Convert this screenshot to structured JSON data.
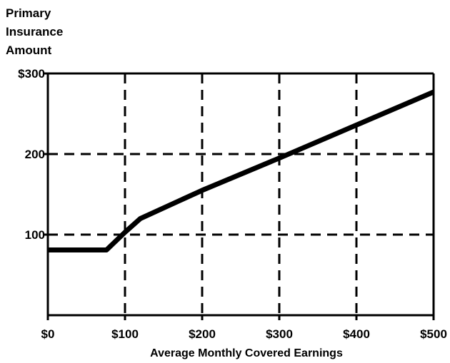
{
  "chart_data": {
    "type": "line",
    "title": "",
    "ylabel": [
      "Primary",
      "Insurance",
      "Amount"
    ],
    "xlabel": "Average Monthly Covered Earnings",
    "xlim": [
      0,
      500
    ],
    "ylim": [
      0,
      300
    ],
    "x_ticks": [
      {
        "value": 0,
        "label": "$0"
      },
      {
        "value": 100,
        "label": "$100"
      },
      {
        "value": 200,
        "label": "$200"
      },
      {
        "value": 300,
        "label": "$300"
      },
      {
        "value": 400,
        "label": "$400"
      },
      {
        "value": 500,
        "label": "$500"
      }
    ],
    "y_ticks": [
      {
        "value": 100,
        "label": "100"
      },
      {
        "value": 200,
        "label": "200"
      },
      {
        "value": 300,
        "label": "$300"
      }
    ],
    "grid": true,
    "grid_style": "dashed",
    "line_color": "#000000",
    "series": [
      {
        "x": [
          0,
          76,
          100,
          120,
          200,
          300,
          400,
          500
        ],
        "y": [
          81,
          81,
          103,
          120,
          155,
          195,
          236,
          277
        ]
      }
    ]
  }
}
